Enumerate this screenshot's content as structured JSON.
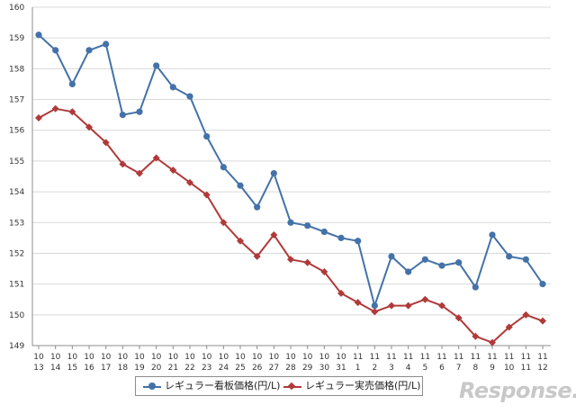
{
  "chart_data": {
    "type": "line",
    "categories": [
      [
        "10",
        "13"
      ],
      [
        "10",
        "14"
      ],
      [
        "10",
        "15"
      ],
      [
        "10",
        "16"
      ],
      [
        "10",
        "17"
      ],
      [
        "10",
        "18"
      ],
      [
        "10",
        "19"
      ],
      [
        "10",
        "20"
      ],
      [
        "10",
        "21"
      ],
      [
        "10",
        "22"
      ],
      [
        "10",
        "23"
      ],
      [
        "10",
        "24"
      ],
      [
        "10",
        "25"
      ],
      [
        "10",
        "26"
      ],
      [
        "10",
        "27"
      ],
      [
        "10",
        "28"
      ],
      [
        "10",
        "29"
      ],
      [
        "10",
        "30"
      ],
      [
        "10",
        "31"
      ],
      [
        "11",
        "1"
      ],
      [
        "11",
        "2"
      ],
      [
        "11",
        "3"
      ],
      [
        "11",
        "4"
      ],
      [
        "11",
        "5"
      ],
      [
        "11",
        "6"
      ],
      [
        "11",
        "7"
      ],
      [
        "11",
        "8"
      ],
      [
        "11",
        "9"
      ],
      [
        "11",
        "10"
      ],
      [
        "11",
        "11"
      ],
      [
        "11",
        "12"
      ]
    ],
    "series": [
      {
        "name": "レギュラー看板価格(円/L)",
        "color": "#4472a8",
        "marker": "circle",
        "values": [
          159.1,
          158.6,
          157.5,
          158.6,
          158.8,
          156.5,
          156.6,
          158.1,
          157.4,
          157.1,
          155.8,
          154.8,
          154.2,
          153.5,
          154.6,
          153.0,
          152.9,
          152.7,
          152.5,
          152.4,
          150.3,
          151.9,
          151.4,
          151.8,
          151.6,
          151.7,
          150.9,
          152.6,
          151.9,
          151.8,
          151.0
        ]
      },
      {
        "name": "レギュラー実売価格(円/L)",
        "color": "#b03a3a",
        "marker": "diamond",
        "values": [
          156.4,
          156.7,
          156.6,
          156.1,
          155.6,
          154.9,
          154.6,
          155.1,
          154.7,
          154.3,
          153.9,
          153.0,
          152.4,
          151.9,
          152.6,
          151.8,
          151.7,
          151.4,
          150.7,
          150.4,
          150.1,
          150.3,
          150.3,
          150.5,
          150.3,
          149.9,
          149.3,
          149.1,
          149.6,
          150.0,
          149.8
        ]
      }
    ],
    "ylim": [
      149,
      160
    ],
    "yticks": [
      149,
      150,
      151,
      152,
      153,
      154,
      155,
      156,
      157,
      158,
      159,
      160
    ],
    "grid": true,
    "title": "",
    "xlabel": "",
    "ylabel": "",
    "legend_position": "bottom"
  },
  "watermark": "Response."
}
